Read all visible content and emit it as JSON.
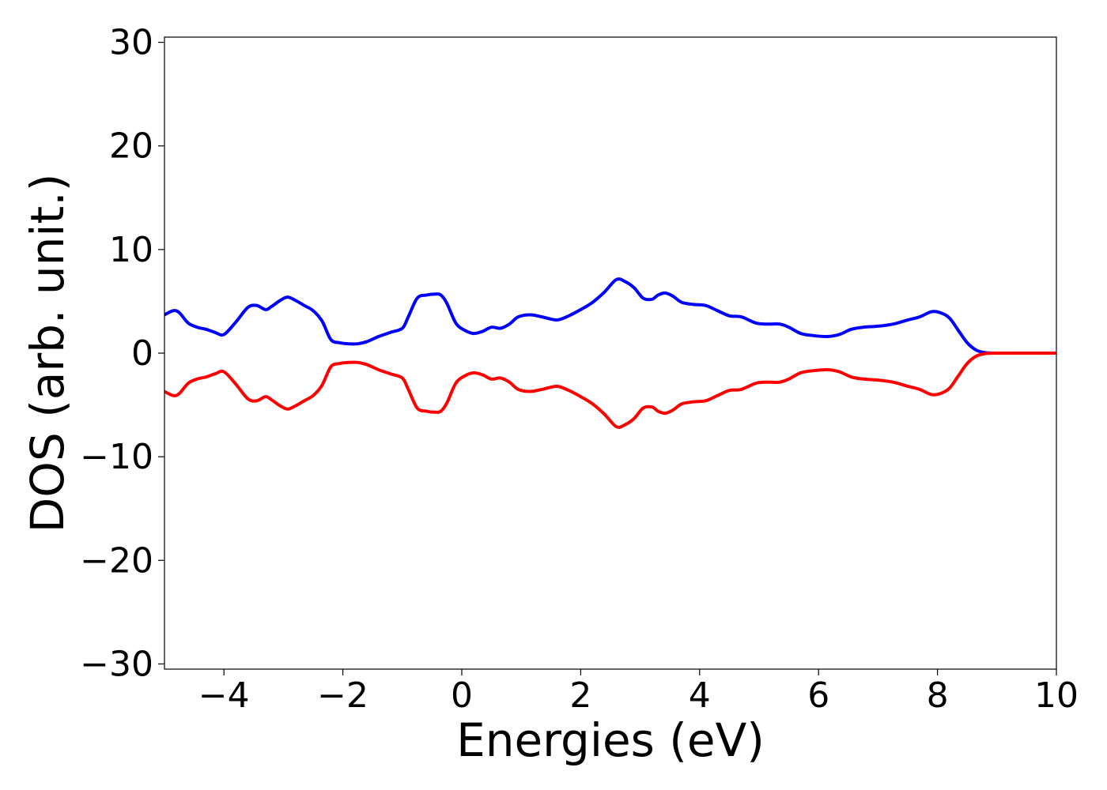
{
  "chart_data": {
    "type": "line",
    "title": "",
    "xlabel": "Energies (eV)",
    "ylabel": "DOS (arb. unit.)",
    "xlim": [
      -5,
      10
    ],
    "ylim": [
      -30.5,
      30.5
    ],
    "xticks": [
      -4,
      -2,
      0,
      2,
      4,
      6,
      8,
      10
    ],
    "xtick_labels": [
      "−4",
      "−2",
      "0",
      "2",
      "4",
      "6",
      "8",
      "10"
    ],
    "yticks": [
      -30,
      -20,
      -10,
      0,
      10,
      20,
      30
    ],
    "ytick_labels": [
      "−30",
      "−20",
      "−10",
      "0",
      "10",
      "20",
      "30"
    ],
    "grid": false,
    "legend": "none",
    "series": [
      {
        "color": "#0000ff",
        "x": [
          -5.0,
          -4.85,
          -4.75,
          -4.6,
          -4.45,
          -4.3,
          -4.15,
          -4.0,
          -3.8,
          -3.6,
          -3.45,
          -3.3,
          -3.2,
          -3.05,
          -2.93,
          -2.8,
          -2.65,
          -2.5,
          -2.35,
          -2.2,
          -2.05,
          -1.9,
          -1.75,
          -1.6,
          -1.4,
          -1.2,
          -1.0,
          -0.9,
          -0.75,
          -0.6,
          -0.45,
          -0.35,
          -0.25,
          -0.1,
          0.05,
          0.2,
          0.35,
          0.5,
          0.65,
          0.8,
          0.95,
          1.15,
          1.35,
          1.6,
          1.8,
          2.0,
          2.2,
          2.4,
          2.6,
          2.75,
          2.9,
          3.05,
          3.2,
          3.3,
          3.42,
          3.55,
          3.7,
          3.9,
          4.1,
          4.3,
          4.5,
          4.7,
          4.95,
          5.15,
          5.35,
          5.5,
          5.7,
          5.9,
          6.15,
          6.35,
          6.55,
          6.75,
          7.0,
          7.25,
          7.5,
          7.7,
          7.9,
          8.05,
          8.2,
          8.35,
          8.5,
          8.65,
          8.8,
          9.0,
          9.3,
          9.6,
          10.0
        ],
        "values": [
          3.7,
          4.1,
          3.9,
          2.9,
          2.5,
          2.3,
          2.0,
          1.8,
          3.0,
          4.4,
          4.6,
          4.2,
          4.5,
          5.1,
          5.4,
          5.1,
          4.6,
          4.1,
          3.1,
          1.3,
          1.0,
          0.9,
          0.9,
          1.1,
          1.6,
          2.0,
          2.4,
          3.5,
          5.3,
          5.6,
          5.7,
          5.6,
          4.8,
          2.9,
          2.2,
          1.9,
          2.1,
          2.5,
          2.4,
          2.8,
          3.5,
          3.7,
          3.5,
          3.2,
          3.6,
          4.2,
          4.9,
          5.9,
          7.1,
          6.9,
          6.3,
          5.3,
          5.2,
          5.6,
          5.8,
          5.5,
          4.9,
          4.7,
          4.6,
          4.1,
          3.6,
          3.5,
          2.9,
          2.8,
          2.8,
          2.5,
          1.9,
          1.7,
          1.6,
          1.8,
          2.3,
          2.5,
          2.6,
          2.8,
          3.2,
          3.5,
          4.0,
          3.9,
          3.4,
          2.2,
          1.0,
          0.3,
          0.05,
          0.0,
          0.0,
          0.0,
          0.0
        ]
      },
      {
        "color": "#ff0000",
        "x": [
          -5.0,
          -4.85,
          -4.75,
          -4.6,
          -4.45,
          -4.3,
          -4.15,
          -4.0,
          -3.8,
          -3.6,
          -3.45,
          -3.3,
          -3.2,
          -3.05,
          -2.93,
          -2.8,
          -2.65,
          -2.5,
          -2.35,
          -2.2,
          -2.05,
          -1.9,
          -1.75,
          -1.6,
          -1.4,
          -1.2,
          -1.0,
          -0.9,
          -0.75,
          -0.6,
          -0.45,
          -0.35,
          -0.25,
          -0.1,
          0.05,
          0.2,
          0.35,
          0.5,
          0.65,
          0.8,
          0.95,
          1.15,
          1.35,
          1.6,
          1.8,
          2.0,
          2.2,
          2.4,
          2.6,
          2.75,
          2.9,
          3.05,
          3.2,
          3.3,
          3.42,
          3.55,
          3.7,
          3.9,
          4.1,
          4.3,
          4.5,
          4.7,
          4.95,
          5.15,
          5.35,
          5.5,
          5.7,
          5.9,
          6.15,
          6.35,
          6.55,
          6.75,
          7.0,
          7.25,
          7.5,
          7.7,
          7.9,
          8.05,
          8.2,
          8.35,
          8.5,
          8.65,
          8.8,
          9.0,
          9.3,
          9.6,
          10.0
        ],
        "values": [
          -3.7,
          -4.1,
          -3.9,
          -2.9,
          -2.5,
          -2.3,
          -2.0,
          -1.8,
          -3.0,
          -4.4,
          -4.6,
          -4.2,
          -4.5,
          -5.1,
          -5.4,
          -5.1,
          -4.6,
          -4.1,
          -3.1,
          -1.3,
          -1.0,
          -0.9,
          -0.9,
          -1.1,
          -1.6,
          -2.0,
          -2.4,
          -3.5,
          -5.3,
          -5.6,
          -5.7,
          -5.6,
          -4.8,
          -2.9,
          -2.2,
          -1.9,
          -2.1,
          -2.5,
          -2.4,
          -2.8,
          -3.5,
          -3.7,
          -3.5,
          -3.2,
          -3.6,
          -4.2,
          -4.9,
          -5.9,
          -7.1,
          -6.9,
          -6.3,
          -5.3,
          -5.2,
          -5.6,
          -5.8,
          -5.5,
          -4.9,
          -4.7,
          -4.6,
          -4.1,
          -3.6,
          -3.5,
          -2.9,
          -2.8,
          -2.8,
          -2.5,
          -1.9,
          -1.7,
          -1.6,
          -1.8,
          -2.3,
          -2.5,
          -2.6,
          -2.8,
          -3.2,
          -3.5,
          -4.0,
          -3.9,
          -3.4,
          -2.2,
          -1.0,
          -0.3,
          -0.05,
          0.0,
          0.0,
          0.0,
          0.0
        ]
      }
    ]
  }
}
